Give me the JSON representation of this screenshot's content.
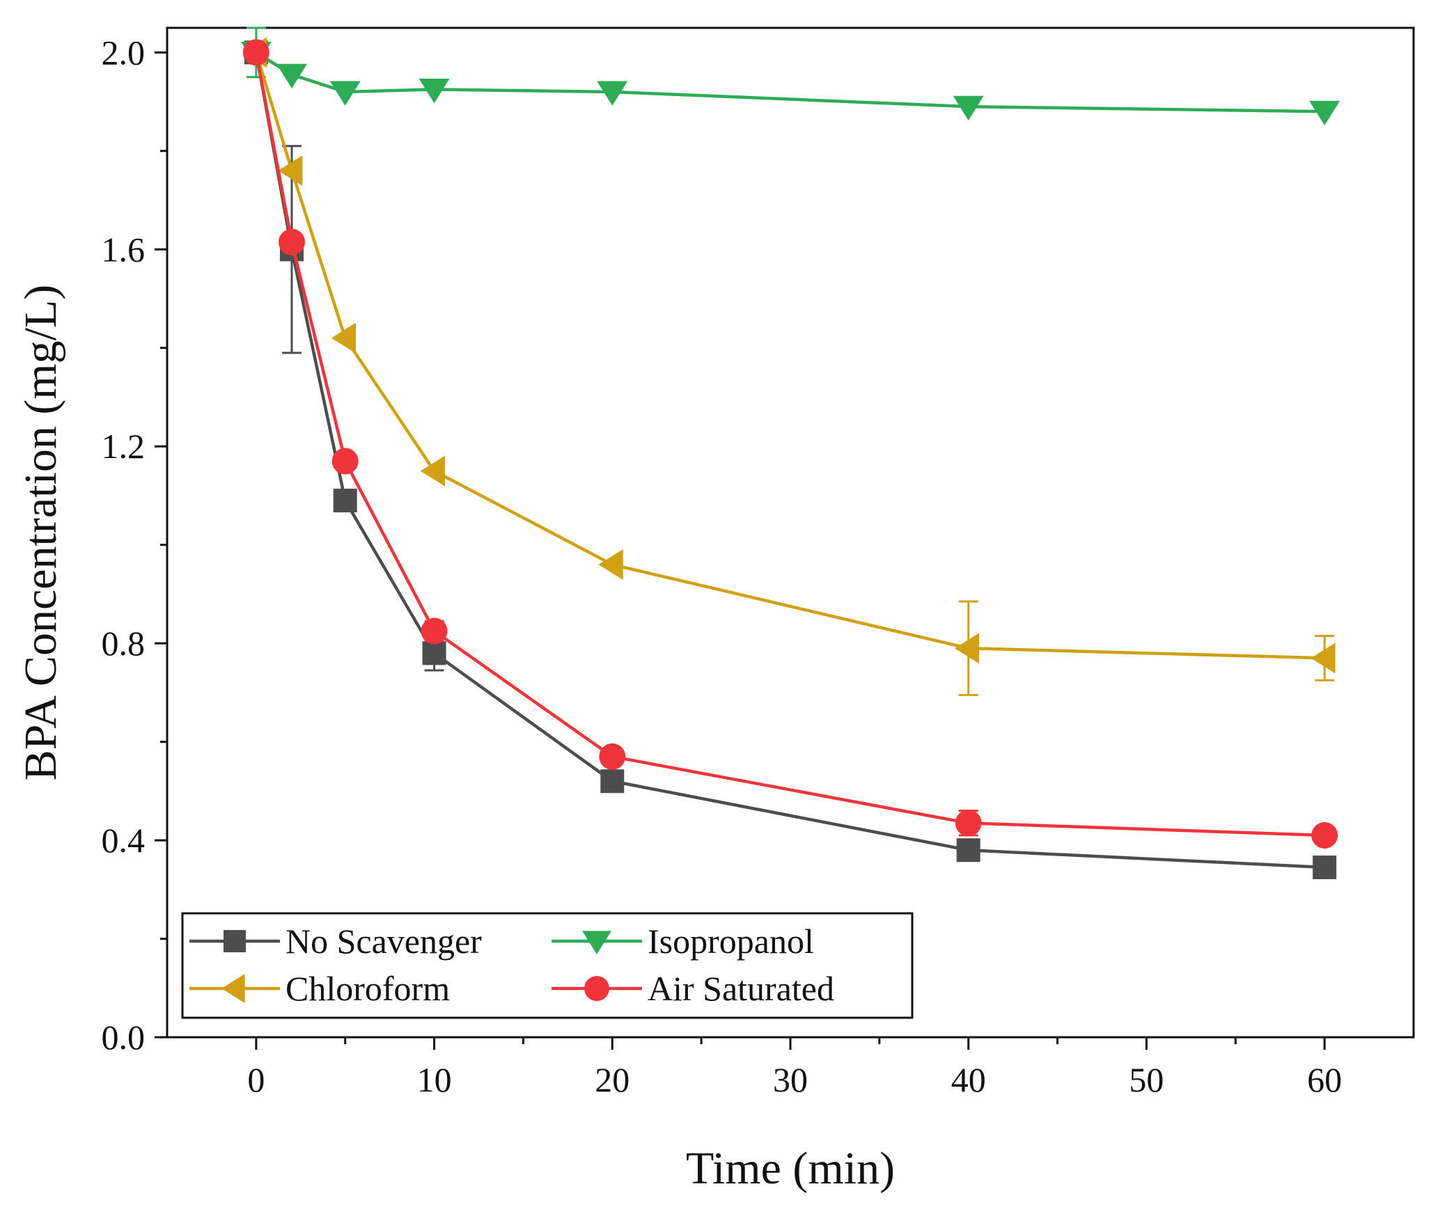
{
  "chart_data": {
    "type": "line",
    "title": "",
    "xlabel": "Time (min)",
    "ylabel": "BPA Concentration (mg/L)",
    "xlim": [
      -5,
      65
    ],
    "ylim": [
      0,
      2.05
    ],
    "xticks": [
      0,
      10,
      20,
      30,
      40,
      50,
      60
    ],
    "xtick_labels": [
      "0",
      "10",
      "20",
      "30",
      "40",
      "50",
      "60"
    ],
    "yticks": [
      0,
      0.4,
      0.8,
      1.2,
      1.6,
      2.0
    ],
    "ytick_labels": [
      "0.0",
      "0.4",
      "0.8",
      "1.2",
      "1.6",
      "2.0"
    ],
    "x_minor_ticks": [
      5,
      15,
      25,
      35,
      45,
      55
    ],
    "y_minor_ticks": [
      0.2,
      0.6,
      1.0,
      1.4,
      1.8
    ],
    "grid": false,
    "legend_position": "bottom-left",
    "series": [
      {
        "name": "No Scavenger",
        "color": "#4d4d4d",
        "marker": "square",
        "x": [
          0,
          2,
          5,
          10,
          20,
          40,
          60
        ],
        "values": [
          2.0,
          1.6,
          1.09,
          0.78,
          0.52,
          0.38,
          0.345
        ],
        "error": [
          0,
          0.21,
          0,
          0.035,
          0,
          0,
          0
        ]
      },
      {
        "name": "Isopropanol",
        "color": "#2eab55",
        "marker": "triangle-down",
        "x": [
          0,
          2,
          5,
          10,
          20,
          40,
          60
        ],
        "values": [
          2.0,
          1.955,
          1.92,
          1.925,
          1.92,
          1.89,
          1.88
        ],
        "error": [
          0.05,
          0,
          0,
          0,
          0,
          0,
          0
        ]
      },
      {
        "name": "Chloroform",
        "color": "#d1a014",
        "marker": "triangle-left",
        "x": [
          0,
          2,
          5,
          10,
          20,
          40,
          60
        ],
        "values": [
          2.0,
          1.76,
          1.42,
          1.15,
          0.96,
          0.79,
          0.77
        ],
        "error": [
          0,
          0,
          0,
          0,
          0,
          0.095,
          0.045
        ]
      },
      {
        "name": "Air Saturated",
        "color": "#f0343c",
        "marker": "circle",
        "x": [
          0,
          2,
          5,
          10,
          20,
          40,
          60
        ],
        "values": [
          2.0,
          1.615,
          1.17,
          0.825,
          0.57,
          0.435,
          0.41
        ],
        "error": [
          0,
          0,
          0,
          0.02,
          0,
          0.025,
          0
        ]
      }
    ]
  }
}
